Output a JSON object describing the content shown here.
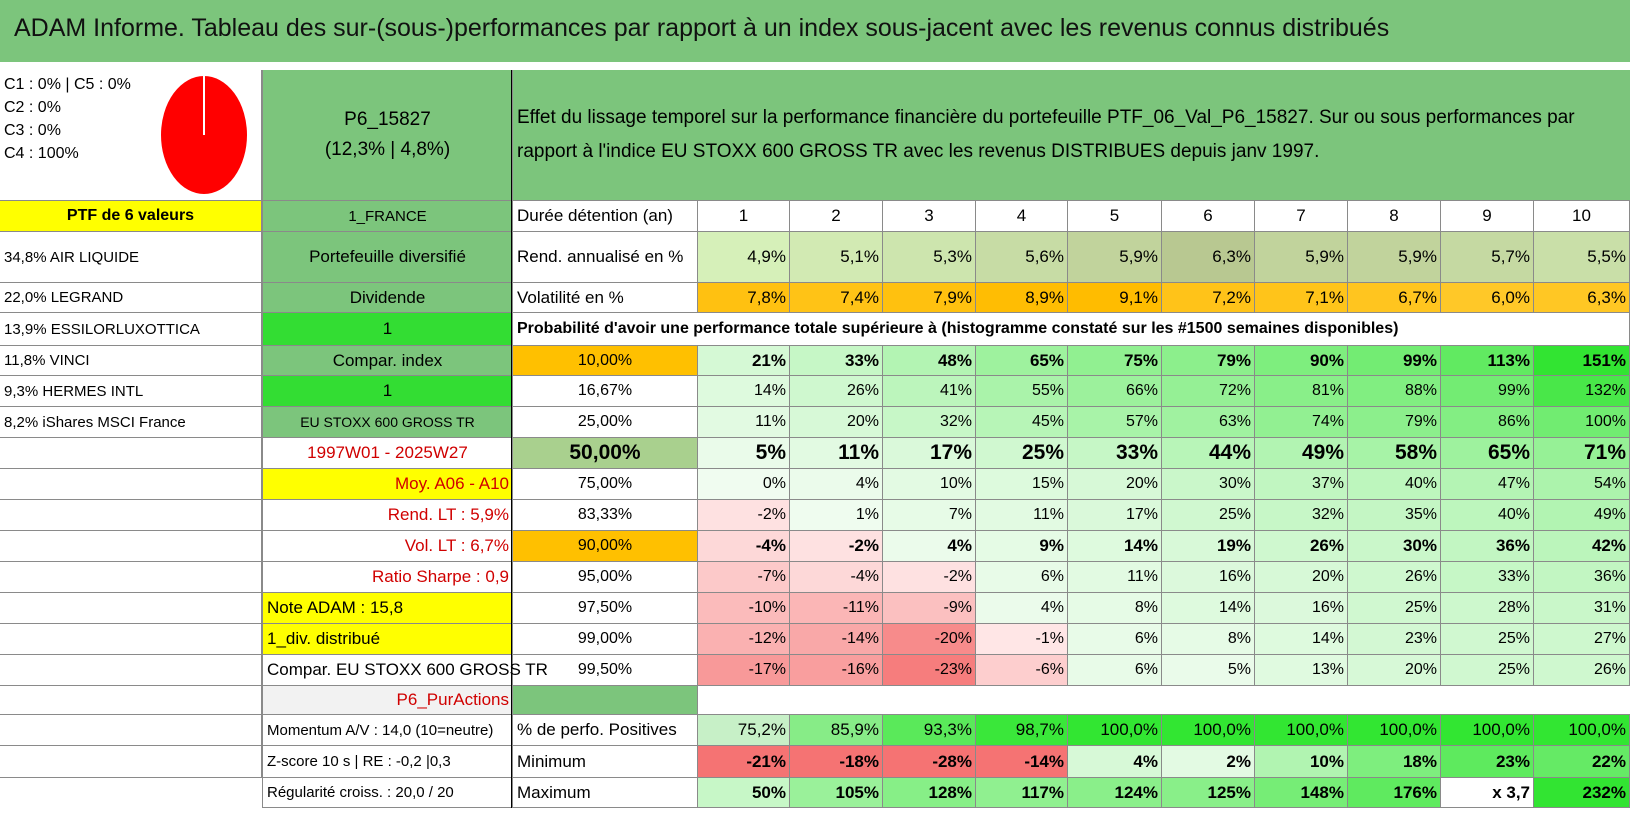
{
  "title": "ADAM Informe. Tableau des sur-(sous-)performances par rapport à un index sous-jacent avec les revenus connus distribués",
  "colors": {
    "banner": "#7cc57c",
    "yellow": "#ffff00",
    "bright_green": "#33dd33",
    "orange": "#ffc000",
    "pie": "#ff0000"
  },
  "top": {
    "c_lines": [
      "C1 : 0% | C5 : 0%",
      "C2 : 0%",
      "C3 : 0%",
      "C4 : 100%"
    ],
    "pie_icon": "pie-chart-icon",
    "fund_code": "P6_15827",
    "fund_sub": "(12,3% | 4,8%)",
    "description_l1": "Effet du lissage temporel sur la performance financière du portefeuille PTF_06_Val_P6_15827. Sur ou sous performances par",
    "description_l2": "rapport à l'indice EU STOXX 600 GROSS TR avec les revenus DISTRIBUES depuis janv 1997."
  },
  "left_col": [
    "PTF de 6 valeurs",
    "34,8% AIR LIQUIDE",
    "22,0% LEGRAND",
    "13,9% ESSILORLUXOTTICA",
    "11,8% VINCI",
    "9,3% HERMES INTL",
    "8,2% iShares MSCI France"
  ],
  "mid_col": [
    "1_FRANCE",
    "Portefeuille diversifié",
    "Dividende",
    "1",
    "Compar. index",
    "1",
    "EU STOXX 600 GROSS TR",
    "1997W01 - 2025W27",
    "Moy. A06 - A10",
    "Rend. LT : 5,9%",
    "Vol. LT : 6,7%",
    "Ratio Sharpe : 0,9"
  ],
  "left_notes": [
    "Note ADAM : 15,8",
    "1_div. distribué",
    "Compar. EU STOXX 600 GROSS TR"
  ],
  "p6_label": "P6_PurActions",
  "bottom_left": [
    "Momentum A/V : 14,0 (10=neutre)",
    "Z-score 10 s | RE : -0,2 |0,3",
    "Régularité croiss. : 20,0 / 20"
  ],
  "table": {
    "years_label": "Durée détention (an)",
    "years": [
      "1",
      "2",
      "3",
      "4",
      "5",
      "6",
      "7",
      "8",
      "9",
      "10"
    ],
    "rend_label": "Rend. annualisé en %",
    "rend": [
      "4,9%",
      "5,1%",
      "5,3%",
      "5,6%",
      "5,9%",
      "6,3%",
      "5,9%",
      "5,9%",
      "5,7%",
      "5,5%"
    ],
    "vol_label": "Volatilité en %",
    "vol": [
      "7,8%",
      "7,4%",
      "7,9%",
      "8,9%",
      "9,1%",
      "7,2%",
      "7,1%",
      "6,7%",
      "6,0%",
      "6,3%"
    ],
    "prob_title": "Probabilité d'avoir une performance totale supérieure à (histogramme constaté sur les #1500 semaines disponibles)",
    "prob_rows": [
      {
        "label": "10,00%",
        "values": [
          "21%",
          "33%",
          "48%",
          "65%",
          "75%",
          "79%",
          "90%",
          "99%",
          "113%",
          "151%"
        ]
      },
      {
        "label": "16,67%",
        "values": [
          "14%",
          "26%",
          "41%",
          "55%",
          "66%",
          "72%",
          "81%",
          "88%",
          "99%",
          "132%"
        ]
      },
      {
        "label": "25,00%",
        "values": [
          "11%",
          "20%",
          "32%",
          "45%",
          "57%",
          "63%",
          "74%",
          "79%",
          "86%",
          "100%"
        ]
      },
      {
        "label": "50,00%",
        "values": [
          "5%",
          "11%",
          "17%",
          "25%",
          "33%",
          "44%",
          "49%",
          "58%",
          "65%",
          "71%"
        ]
      },
      {
        "label": "75,00%",
        "values": [
          "0%",
          "4%",
          "10%",
          "15%",
          "20%",
          "30%",
          "37%",
          "40%",
          "47%",
          "54%"
        ]
      },
      {
        "label": "83,33%",
        "values": [
          "-2%",
          "1%",
          "7%",
          "11%",
          "17%",
          "25%",
          "32%",
          "35%",
          "40%",
          "49%"
        ]
      },
      {
        "label": "90,00%",
        "values": [
          "-4%",
          "-2%",
          "4%",
          "9%",
          "14%",
          "19%",
          "26%",
          "30%",
          "36%",
          "42%"
        ]
      },
      {
        "label": "95,00%",
        "values": [
          "-7%",
          "-4%",
          "-2%",
          "6%",
          "11%",
          "16%",
          "20%",
          "26%",
          "33%",
          "36%"
        ]
      },
      {
        "label": "97,50%",
        "values": [
          "-10%",
          "-11%",
          "-9%",
          "4%",
          "8%",
          "14%",
          "16%",
          "25%",
          "28%",
          "31%"
        ]
      },
      {
        "label": "99,00%",
        "values": [
          "-12%",
          "-14%",
          "-20%",
          "-1%",
          "6%",
          "8%",
          "14%",
          "23%",
          "25%",
          "27%"
        ]
      },
      {
        "label": "99,50%",
        "values": [
          "-17%",
          "-16%",
          "-23%",
          "-6%",
          "6%",
          "5%",
          "13%",
          "20%",
          "25%",
          "26%"
        ]
      }
    ],
    "pos_label": "% de perfo. Positives",
    "pos": [
      "75,2%",
      "85,9%",
      "93,3%",
      "98,7%",
      "100,0%",
      "100,0%",
      "100,0%",
      "100,0%",
      "100,0%",
      "100,0%"
    ],
    "min_label": "Minimum",
    "min": [
      "-21%",
      "-18%",
      "-28%",
      "-14%",
      "4%",
      "2%",
      "10%",
      "18%",
      "23%",
      "22%"
    ],
    "max_label": "Maximum",
    "max": [
      "50%",
      "105%",
      "128%",
      "117%",
      "124%",
      "125%",
      "148%",
      "176%",
      "x 3,7",
      "232%"
    ]
  }
}
